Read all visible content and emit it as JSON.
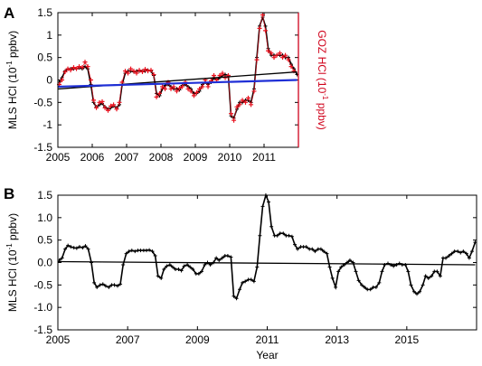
{
  "colors": {
    "mls": "#000000",
    "goz": "#e8121f",
    "goz_axis": "#d0021b",
    "mls_trend": "#000000",
    "goz_trend": "#1f2fd6",
    "frame": "#000000"
  },
  "chart_data": [
    {
      "panel": "A",
      "type": "line",
      "xlabel": "",
      "ylabel_prefix": "MLS HCl (10",
      "ylabel_exp": "-1",
      "ylabel_suffix": " ppbv)",
      "ylabel_right_prefix": "GOZ HCl (10",
      "ylabel_right_exp": "-1",
      "ylabel_right_suffix": " ppbv)",
      "xlim": [
        2005,
        2012
      ],
      "ylim": [
        -1.5,
        1.5
      ],
      "x_ticks": [
        2005,
        2006,
        2007,
        2008,
        2009,
        2010,
        2011
      ],
      "x_tick_labels": [
        "2005",
        "2006",
        "2007",
        "2008",
        "2009",
        "2010",
        "2011"
      ],
      "y_ticks": [
        -1.5,
        -1.0,
        -0.5,
        0.0,
        0.5,
        1.0,
        1.5
      ],
      "y_tick_labels": [
        "-1.5",
        "-1",
        "-0.5",
        "0",
        "0.5",
        "1",
        "1.5"
      ],
      "series": [
        {
          "key": "mls",
          "x": [
            2005.04,
            2005.12,
            2005.21,
            2005.29,
            2005.37,
            2005.46,
            2005.54,
            2005.62,
            2005.71,
            2005.79,
            2005.87,
            2005.96,
            2006.04,
            2006.12,
            2006.21,
            2006.29,
            2006.37,
            2006.46,
            2006.54,
            2006.62,
            2006.71,
            2006.79,
            2006.87,
            2006.96,
            2007.04,
            2007.12,
            2007.21,
            2007.29,
            2007.37,
            2007.46,
            2007.54,
            2007.62,
            2007.71,
            2007.79,
            2007.87,
            2007.96,
            2008.04,
            2008.12,
            2008.21,
            2008.29,
            2008.37,
            2008.46,
            2008.54,
            2008.62,
            2008.71,
            2008.79,
            2008.87,
            2008.96,
            2009.04,
            2009.12,
            2009.21,
            2009.29,
            2009.37,
            2009.46,
            2009.54,
            2009.62,
            2009.71,
            2009.79,
            2009.87,
            2009.96,
            2010.04,
            2010.12,
            2010.21,
            2010.29,
            2010.37,
            2010.46,
            2010.54,
            2010.62,
            2010.71,
            2010.79,
            2010.87,
            2010.96,
            2011.04,
            2011.12,
            2011.21,
            2011.29,
            2011.37,
            2011.46,
            2011.54,
            2011.62,
            2011.71,
            2011.79,
            2011.87,
            2011.96
          ],
          "y": [
            -0.05,
            0.05,
            0.2,
            0.25,
            0.25,
            0.25,
            0.25,
            0.27,
            0.25,
            0.3,
            0.25,
            -0.1,
            -0.5,
            -0.6,
            -0.55,
            -0.52,
            -0.6,
            -0.65,
            -0.62,
            -0.58,
            -0.62,
            -0.55,
            -0.1,
            0.15,
            0.2,
            0.2,
            0.18,
            0.2,
            0.2,
            0.2,
            0.2,
            0.22,
            0.2,
            0.1,
            -0.3,
            -0.35,
            -0.2,
            -0.12,
            -0.1,
            -0.15,
            -0.2,
            -0.2,
            -0.22,
            -0.12,
            -0.1,
            -0.15,
            -0.2,
            -0.3,
            -0.3,
            -0.25,
            -0.1,
            -0.05,
            -0.1,
            -0.05,
            0.05,
            0.0,
            0.05,
            0.1,
            0.12,
            0.1,
            -0.8,
            -0.85,
            -0.65,
            -0.5,
            -0.5,
            -0.45,
            -0.45,
            -0.5,
            -0.2,
            0.5,
            1.2,
            1.4,
            1.2,
            0.7,
            0.55,
            0.55,
            0.55,
            0.55,
            0.55,
            0.5,
            0.5,
            0.35,
            0.25,
            0.12
          ]
        },
        {
          "key": "goz",
          "x": [
            2005.04,
            2005.12,
            2005.21,
            2005.29,
            2005.37,
            2005.46,
            2005.54,
            2005.62,
            2005.71,
            2005.79,
            2005.87,
            2005.96,
            2006.04,
            2006.12,
            2006.21,
            2006.29,
            2006.37,
            2006.46,
            2006.54,
            2006.62,
            2006.71,
            2006.79,
            2006.87,
            2006.96,
            2007.04,
            2007.12,
            2007.21,
            2007.29,
            2007.37,
            2007.46,
            2007.54,
            2007.62,
            2007.71,
            2007.79,
            2007.87,
            2007.96,
            2008.04,
            2008.12,
            2008.21,
            2008.29,
            2008.37,
            2008.46,
            2008.54,
            2008.62,
            2008.71,
            2008.79,
            2008.87,
            2008.96,
            2009.04,
            2009.12,
            2009.21,
            2009.29,
            2009.37,
            2009.46,
            2009.54,
            2009.62,
            2009.71,
            2009.79,
            2009.87,
            2009.96,
            2010.04,
            2010.12,
            2010.21,
            2010.29,
            2010.37,
            2010.46,
            2010.54,
            2010.62,
            2010.71,
            2010.79,
            2010.87,
            2010.96,
            2011.04,
            2011.12,
            2011.21,
            2011.29,
            2011.37,
            2011.46,
            2011.54,
            2011.62,
            2011.71,
            2011.79,
            2011.87
          ],
          "y": [
            -0.1,
            0.0,
            0.18,
            0.25,
            0.22,
            0.28,
            0.25,
            0.3,
            0.28,
            0.4,
            0.3,
            0.0,
            -0.45,
            -0.62,
            -0.5,
            -0.48,
            -0.62,
            -0.68,
            -0.58,
            -0.55,
            -0.65,
            -0.5,
            -0.05,
            0.2,
            0.15,
            0.25,
            0.2,
            0.15,
            0.22,
            0.18,
            0.24,
            0.2,
            0.22,
            0.12,
            -0.38,
            -0.3,
            -0.15,
            -0.2,
            -0.05,
            -0.2,
            -0.15,
            -0.25,
            -0.18,
            -0.15,
            -0.05,
            -0.2,
            -0.25,
            -0.35,
            -0.28,
            -0.2,
            -0.15,
            0.0,
            -0.15,
            -0.02,
            0.1,
            0.0,
            0.1,
            0.15,
            0.05,
            0.1,
            -0.75,
            -0.9,
            -0.6,
            -0.55,
            -0.45,
            -0.5,
            -0.4,
            -0.55,
            -0.25,
            0.45,
            1.15,
            1.45,
            1.1,
            0.65,
            0.6,
            0.5,
            0.55,
            0.6,
            0.5,
            0.55,
            0.45,
            0.3,
            0.2
          ]
        },
        {
          "key": "mls_trend",
          "x": [
            2005.0,
            2011.96
          ],
          "y": [
            -0.2,
            0.18
          ]
        },
        {
          "key": "goz_trend",
          "x": [
            2005.0,
            2011.96
          ],
          "y": [
            -0.15,
            0.0
          ]
        }
      ]
    },
    {
      "panel": "B",
      "type": "line",
      "xlabel": "Year",
      "ylabel_prefix": "MLS HCl (10",
      "ylabel_exp": "-1",
      "ylabel_suffix": " ppbv)",
      "xlim": [
        2005,
        2017
      ],
      "ylim": [
        -1.5,
        1.5
      ],
      "x_ticks": [
        2005,
        2007,
        2009,
        2011,
        2013,
        2015
      ],
      "x_tick_labels": [
        "2005",
        "2007",
        "2009",
        "2011",
        "2013",
        "2015"
      ],
      "y_ticks": [
        -1.5,
        -1.0,
        -0.5,
        0.0,
        0.5,
        1.0,
        1.5
      ],
      "y_tick_labels": [
        "-1.5",
        "-1.0",
        "-0.5",
        "0.0",
        "0.5",
        "1.0",
        "1.5"
      ],
      "series": [
        {
          "key": "mls",
          "x": [
            2005.04,
            2005.12,
            2005.21,
            2005.29,
            2005.37,
            2005.46,
            2005.54,
            2005.62,
            2005.71,
            2005.79,
            2005.87,
            2005.96,
            2006.04,
            2006.12,
            2006.21,
            2006.29,
            2006.37,
            2006.46,
            2006.54,
            2006.62,
            2006.71,
            2006.79,
            2006.87,
            2006.96,
            2007.04,
            2007.12,
            2007.21,
            2007.29,
            2007.37,
            2007.46,
            2007.54,
            2007.62,
            2007.71,
            2007.79,
            2007.87,
            2007.96,
            2008.04,
            2008.12,
            2008.21,
            2008.29,
            2008.37,
            2008.46,
            2008.54,
            2008.62,
            2008.71,
            2008.79,
            2008.87,
            2008.96,
            2009.04,
            2009.12,
            2009.21,
            2009.29,
            2009.37,
            2009.46,
            2009.54,
            2009.62,
            2009.71,
            2009.79,
            2009.87,
            2009.96,
            2010.04,
            2010.12,
            2010.21,
            2010.29,
            2010.37,
            2010.46,
            2010.54,
            2010.62,
            2010.71,
            2010.79,
            2010.87,
            2010.96,
            2011.04,
            2011.12,
            2011.21,
            2011.29,
            2011.37,
            2011.46,
            2011.54,
            2011.62,
            2011.71,
            2011.79,
            2011.87,
            2011.96,
            2012.04,
            2012.12,
            2012.21,
            2012.29,
            2012.37,
            2012.46,
            2012.54,
            2012.62,
            2012.71,
            2012.79,
            2012.87,
            2012.96,
            2013.04,
            2013.12,
            2013.21,
            2013.29,
            2013.37,
            2013.46,
            2013.54,
            2013.62,
            2013.71,
            2013.79,
            2013.87,
            2013.96,
            2014.04,
            2014.12,
            2014.21,
            2014.29,
            2014.37,
            2014.46,
            2014.54,
            2014.62,
            2014.71,
            2014.79,
            2014.87,
            2014.96,
            2015.04,
            2015.12,
            2015.21,
            2015.29,
            2015.37,
            2015.46,
            2015.54,
            2015.62,
            2015.71,
            2015.79,
            2015.87,
            2015.96,
            2016.04,
            2016.12,
            2016.21,
            2016.29,
            2016.37,
            2016.46,
            2016.54,
            2016.62,
            2016.71,
            2016.79,
            2016.87,
            2016.96
          ],
          "y": [
            0.05,
            0.1,
            0.3,
            0.38,
            0.35,
            0.33,
            0.32,
            0.35,
            0.33,
            0.37,
            0.3,
            0.0,
            -0.45,
            -0.55,
            -0.5,
            -0.48,
            -0.52,
            -0.55,
            -0.5,
            -0.5,
            -0.52,
            -0.48,
            -0.05,
            0.2,
            0.25,
            0.27,
            0.25,
            0.27,
            0.27,
            0.27,
            0.27,
            0.28,
            0.25,
            0.15,
            -0.3,
            -0.35,
            -0.15,
            -0.08,
            -0.05,
            -0.1,
            -0.15,
            -0.15,
            -0.18,
            -0.08,
            -0.05,
            -0.1,
            -0.15,
            -0.25,
            -0.25,
            -0.2,
            -0.05,
            0.0,
            -0.05,
            0.0,
            0.1,
            0.05,
            0.1,
            0.15,
            0.15,
            0.12,
            -0.75,
            -0.8,
            -0.6,
            -0.45,
            -0.42,
            -0.38,
            -0.38,
            -0.42,
            -0.1,
            0.6,
            1.25,
            1.5,
            1.35,
            0.8,
            0.6,
            0.6,
            0.65,
            0.65,
            0.6,
            0.6,
            0.58,
            0.4,
            0.3,
            0.35,
            0.35,
            0.35,
            0.3,
            0.3,
            0.25,
            0.3,
            0.3,
            0.25,
            0.2,
            -0.1,
            -0.35,
            -0.55,
            -0.2,
            -0.1,
            -0.05,
            0.0,
            0.05,
            0.0,
            -0.2,
            -0.4,
            -0.5,
            -0.55,
            -0.6,
            -0.6,
            -0.55,
            -0.55,
            -0.45,
            -0.2,
            -0.05,
            -0.02,
            -0.05,
            -0.08,
            -0.05,
            -0.02,
            -0.05,
            -0.05,
            -0.2,
            -0.5,
            -0.65,
            -0.7,
            -0.65,
            -0.5,
            -0.3,
            -0.35,
            -0.3,
            -0.2,
            -0.2,
            -0.3,
            0.1,
            0.1,
            0.15,
            0.2,
            0.25,
            0.25,
            0.22,
            0.25,
            0.2,
            0.1,
            0.25,
            0.45
          ]
        },
        {
          "key": "mls_trend",
          "x": [
            2005.0,
            2016.96
          ],
          "y": [
            0.02,
            -0.05
          ]
        }
      ]
    }
  ]
}
